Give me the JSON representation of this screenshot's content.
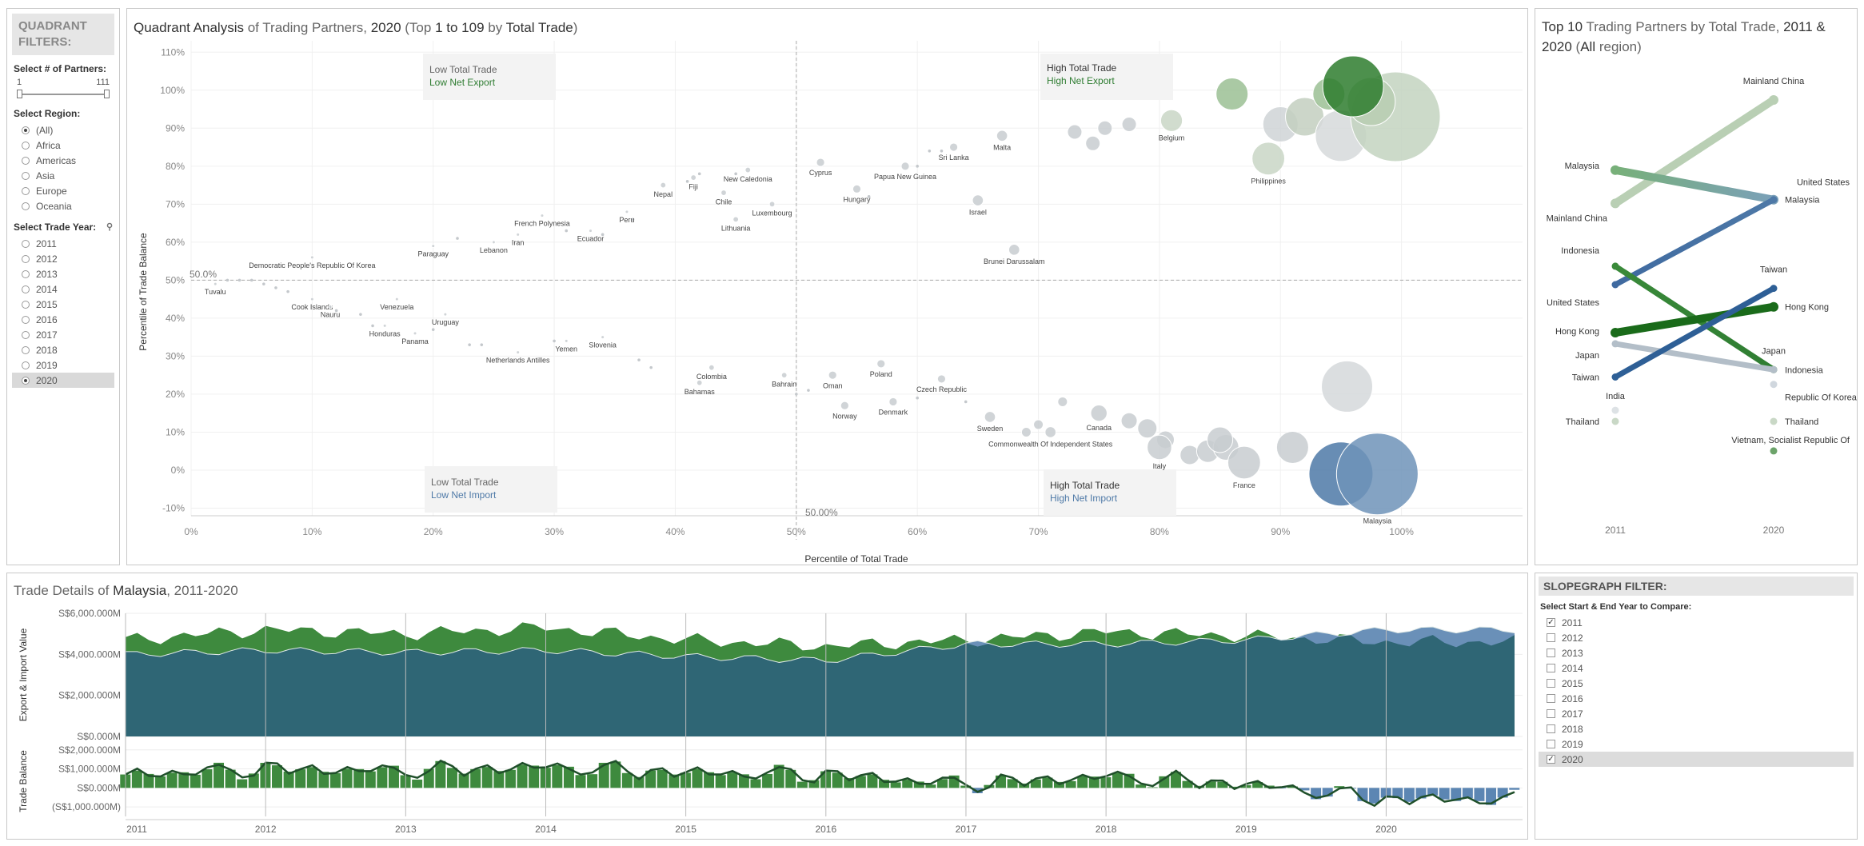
{
  "filters": {
    "title": "QUADRANT FILTERS:",
    "partners_label": "Select # of Partners:",
    "slider_min": "1",
    "slider_max": "111",
    "region_label": "Select Region:",
    "regions": [
      "(All)",
      "Africa",
      "Americas",
      "Asia",
      "Europe",
      "Oceania"
    ],
    "selected_region": "(All)",
    "year_label": "Select Trade Year:",
    "years": [
      "2011",
      "2012",
      "2013",
      "2014",
      "2015",
      "2016",
      "2017",
      "2018",
      "2019",
      "2020"
    ],
    "selected_year": "2020"
  },
  "quadrant": {
    "title_main": "Quadrant Analysis",
    "title_of": " of Trading Partners, ",
    "title_year": "2020",
    "title_paren_a": "  (Top ",
    "title_range": "1 to 109",
    "title_by": " by ",
    "title_metric": "Total Trade",
    "title_close": ")",
    "quadrant_labels": {
      "tl_a": "Low Total Trade",
      "tl_b": "Low Net Export",
      "tr_a": "High Total Trade",
      "tr_b": "High Net Export",
      "bl_a": "Low Total Trade",
      "bl_b": "Low Net Import",
      "br_a": "High Total Trade",
      "br_b": "High Net Import"
    },
    "ref_y_label": "50.0%",
    "ref_x_label": "50.00%"
  },
  "slope": {
    "title_a": "Top 10",
    "title_b": " Trading Partners by Total Trade, ",
    "title_c": "2011 & 2020",
    "title_d": " (",
    "title_e": "All",
    "title_f": " region)"
  },
  "trade": {
    "title_a": "Trade Details of ",
    "title_b": "Malaysia",
    "title_c": ", 2011-2020",
    "ylabel_top": "Export & Import Value",
    "ylabel_bottom": "Trade Balance",
    "top_ticks": [
      "S$6,000.000M",
      "S$4,000.000M",
      "S$2,000.000M",
      "S$0.000M"
    ],
    "bottom_ticks": [
      "S$2,000.000M",
      "S$1,000.000M",
      "S$0.000M",
      "(S$1,000.000M)"
    ],
    "years": [
      "2011",
      "2012",
      "2013",
      "2014",
      "2015",
      "2016",
      "2017",
      "2018",
      "2019",
      "2020"
    ]
  },
  "slope_filter": {
    "title": "SLOPEGRAPH FILTER:",
    "label": "Select Start & End Year to Compare:",
    "years": [
      "2011",
      "2012",
      "2013",
      "2014",
      "2015",
      "2016",
      "2017",
      "2018",
      "2019",
      "2020"
    ],
    "checked": [
      "2011",
      "2020"
    ]
  },
  "colors": {
    "green": "#2f7d32",
    "dark_green": "#1a6b1a",
    "blue": "#4e79a7",
    "teal": "#2e6b7a",
    "grey": "#c8ccd0"
  },
  "chart_data": [
    {
      "type": "scatter",
      "title": "Quadrant Analysis of Trading Partners, 2020 (Top 1 to 109 by Total Trade)",
      "xlabel": "Percentile of Total Trade",
      "ylabel": "Percentile of Trade Balance",
      "xlim": [
        0,
        1.1
      ],
      "ylim": [
        -0.12,
        1.13
      ],
      "x_ticks": [
        "0%",
        "10%",
        "20%",
        "30%",
        "40%",
        "50%",
        "60%",
        "70%",
        "80%",
        "90%",
        "100%"
      ],
      "y_ticks": [
        "-10%",
        "0%",
        "10%",
        "20%",
        "30%",
        "40%",
        "50%",
        "60%",
        "70%",
        "80%",
        "90%",
        "100%",
        "110%"
      ],
      "points": [
        {
          "name": "Tuvalu",
          "x": 0.02,
          "y": 0.49,
          "s": 1
        },
        {
          "name": "Democratic People's Republic Of Korea",
          "x": 0.1,
          "y": 0.56,
          "s": 1
        },
        {
          "name": "Cook Islands",
          "x": 0.1,
          "y": 0.45,
          "s": 1
        },
        {
          "name": "Nauru",
          "x": 0.115,
          "y": 0.43,
          "s": 1
        },
        {
          "name": "Venezuela",
          "x": 0.17,
          "y": 0.45,
          "s": 1
        },
        {
          "name": "Honduras",
          "x": 0.16,
          "y": 0.38,
          "s": 1
        },
        {
          "name": "Panama",
          "x": 0.185,
          "y": 0.36,
          "s": 1
        },
        {
          "name": "Uruguay",
          "x": 0.21,
          "y": 0.41,
          "s": 1
        },
        {
          "name": "Paraguay",
          "x": 0.2,
          "y": 0.59,
          "s": 1
        },
        {
          "name": "Lebanon",
          "x": 0.25,
          "y": 0.6,
          "s": 1
        },
        {
          "name": "Iran",
          "x": 0.27,
          "y": 0.62,
          "s": 1
        },
        {
          "name": "French Polynesia",
          "x": 0.29,
          "y": 0.67,
          "s": 1
        },
        {
          "name": "Ecuador",
          "x": 0.33,
          "y": 0.63,
          "s": 1
        },
        {
          "name": "Peru",
          "x": 0.36,
          "y": 0.68,
          "s": 1
        },
        {
          "name": "Netherlands Antilles",
          "x": 0.27,
          "y": 0.31,
          "s": 1
        },
        {
          "name": "Yemen",
          "x": 0.31,
          "y": 0.34,
          "s": 1
        },
        {
          "name": "Slovenia",
          "x": 0.34,
          "y": 0.35,
          "s": 1
        },
        {
          "name": "Nepal",
          "x": 0.39,
          "y": 0.75,
          "s": 2
        },
        {
          "name": "Fiji",
          "x": 0.415,
          "y": 0.77,
          "s": 2
        },
        {
          "name": "New Caledonia",
          "x": 0.46,
          "y": 0.79,
          "s": 2
        },
        {
          "name": "Chile",
          "x": 0.44,
          "y": 0.73,
          "s": 2
        },
        {
          "name": "Lithuania",
          "x": 0.45,
          "y": 0.66,
          "s": 2
        },
        {
          "name": "Luxembourg",
          "x": 0.48,
          "y": 0.7,
          "s": 2
        },
        {
          "name": "Colombia",
          "x": 0.43,
          "y": 0.27,
          "s": 2
        },
        {
          "name": "Bahamas",
          "x": 0.42,
          "y": 0.23,
          "s": 2
        },
        {
          "name": "Bahrain",
          "x": 0.49,
          "y": 0.25,
          "s": 2
        },
        {
          "name": "Oman",
          "x": 0.53,
          "y": 0.25,
          "s": 3
        },
        {
          "name": "Norway",
          "x": 0.54,
          "y": 0.17,
          "s": 3
        },
        {
          "name": "Poland",
          "x": 0.57,
          "y": 0.28,
          "s": 3
        },
        {
          "name": "Denmark",
          "x": 0.58,
          "y": 0.18,
          "s": 3
        },
        {
          "name": "Czech Republic",
          "x": 0.62,
          "y": 0.24,
          "s": 3
        },
        {
          "name": "Cyprus",
          "x": 0.52,
          "y": 0.81,
          "s": 3
        },
        {
          "name": "Hungary",
          "x": 0.55,
          "y": 0.74,
          "s": 3
        },
        {
          "name": "Papua New Guinea",
          "x": 0.59,
          "y": 0.8,
          "s": 3
        },
        {
          "name": "Sri Lanka",
          "x": 0.63,
          "y": 0.85,
          "s": 3
        },
        {
          "name": "Israel",
          "x": 0.65,
          "y": 0.71,
          "s": 4
        },
        {
          "name": "Malta",
          "x": 0.67,
          "y": 0.88,
          "s": 4
        },
        {
          "name": "Brunei Darussalam",
          "x": 0.68,
          "y": 0.58,
          "s": 4
        },
        {
          "name": "Sweden",
          "x": 0.66,
          "y": 0.14,
          "s": 4
        },
        {
          "name": "Commonwealth Of Independent States",
          "x": 0.71,
          "y": 0.1,
          "s": 4
        },
        {
          "name": "Canada",
          "x": 0.75,
          "y": 0.15,
          "s": 6
        },
        {
          "name": "Belgium",
          "x": 0.81,
          "y": 0.92,
          "s": 8
        },
        {
          "name": "Italy",
          "x": 0.8,
          "y": 0.06,
          "s": 9
        },
        {
          "name": "Philippines",
          "x": 0.89,
          "y": 0.82,
          "s": 12
        },
        {
          "name": "France",
          "x": 0.87,
          "y": 0.02,
          "s": 12
        },
        {
          "name": "Malaysia",
          "x": 0.98,
          "y": -0.01,
          "s": 30
        }
      ]
    },
    {
      "type": "line",
      "title": "Top 10 Trading Partners by Total Trade, 2011 & 2020 (All region)",
      "categories": [
        "2011",
        "2020"
      ],
      "series": [
        {
          "name": "Mainland China",
          "values": [
            0.72,
            1.0
          ]
        },
        {
          "name": "Malaysia",
          "values": [
            0.81,
            0.73
          ]
        },
        {
          "name": "United States",
          "values": [
            0.5,
            0.73
          ]
        },
        {
          "name": "Indonesia",
          "values": [
            0.55,
            0.27
          ]
        },
        {
          "name": "Hong Kong",
          "values": [
            0.37,
            0.44
          ]
        },
        {
          "name": "Japan",
          "values": [
            0.34,
            0.27
          ]
        },
        {
          "name": "Taiwan",
          "values": [
            0.25,
            0.49
          ]
        },
        {
          "name": "India",
          "values": [
            0.16,
            null
          ]
        },
        {
          "name": "Thailand",
          "values": [
            0.13,
            0.13
          ]
        },
        {
          "name": "Republic Of Korea",
          "values": [
            null,
            0.23
          ]
        },
        {
          "name": "Vietnam, Socialist Republic Of",
          "values": [
            null,
            0.05
          ]
        }
      ]
    },
    {
      "type": "area",
      "title": "Trade Details of Malaysia, 2011-2020",
      "ylabel": "Export & Import Value",
      "x": [
        "2011",
        "2012",
        "2013",
        "2014",
        "2015",
        "2016",
        "2017",
        "2018",
        "2019",
        "2020"
      ],
      "ylim": [
        0,
        6000
      ],
      "series": [
        {
          "name": "Export",
          "values": [
            4700,
            5200,
            5000,
            5300,
            4700,
            4400,
            4700,
            5100,
            4900,
            4600
          ]
        },
        {
          "name": "Import",
          "values": [
            4000,
            4200,
            4100,
            4200,
            3900,
            3700,
            4500,
            4500,
            4700,
            5200
          ]
        }
      ]
    },
    {
      "type": "bar",
      "title": "Trade Balance",
      "ylabel": "Trade Balance",
      "x": [
        "2011",
        "2012",
        "2013",
        "2014",
        "2015",
        "2016",
        "2017",
        "2018",
        "2019",
        "2020"
      ],
      "ylim": [
        -1500,
        2200
      ],
      "values": [
        700,
        1000,
        900,
        1100,
        800,
        600,
        100,
        400,
        200,
        -800
      ]
    }
  ]
}
